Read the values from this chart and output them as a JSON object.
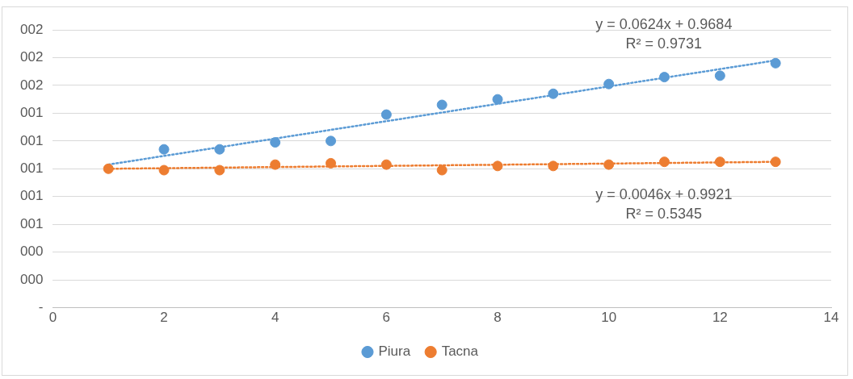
{
  "chart_data": {
    "type": "scatter",
    "xlim": [
      0,
      14
    ],
    "xticks": [
      0,
      2,
      4,
      6,
      8,
      10,
      12,
      14
    ],
    "ylim": [
      0,
      2.0
    ],
    "yticks": [
      {
        "value": 0,
        "label": "-"
      },
      {
        "value": 0.2,
        "label": "000"
      },
      {
        "value": 0.4,
        "label": "000"
      },
      {
        "value": 0.6,
        "label": "001"
      },
      {
        "value": 0.8,
        "label": "001"
      },
      {
        "value": 1.0,
        "label": "001"
      },
      {
        "value": 1.2,
        "label": "001"
      },
      {
        "value": 1.4,
        "label": "001"
      },
      {
        "value": 1.6,
        "label": "002"
      },
      {
        "value": 1.8,
        "label": "002"
      },
      {
        "value": 2.0,
        "label": "002"
      }
    ],
    "grid": "y",
    "legend": "bottom",
    "marker": "circle",
    "series": [
      {
        "name": "Piura",
        "color": "#5b9bd5",
        "x": [
          2,
          3,
          4,
          5,
          6,
          7,
          8,
          9,
          10,
          11,
          12,
          13
        ],
        "values": [
          1.14,
          1.14,
          1.19,
          1.2,
          1.39,
          1.46,
          1.5,
          1.54,
          1.61,
          1.66,
          1.67,
          1.76
        ]
      },
      {
        "name": "Tacna",
        "color": "#ed7d31",
        "x": [
          1,
          2,
          3,
          4,
          5,
          6,
          7,
          8,
          9,
          10,
          11,
          12,
          13
        ],
        "values": [
          1.0,
          0.99,
          0.99,
          1.03,
          1.04,
          1.03,
          0.99,
          1.02,
          1.02,
          1.03,
          1.05,
          1.05,
          1.05
        ]
      },
      {
        "type": "line",
        "line_style": "dotted",
        "marker": "none",
        "color": "#5b9bd5",
        "x": [
          1,
          13
        ],
        "values": [
          1.03,
          1.78
        ]
      },
      {
        "type": "line",
        "line_style": "dotted",
        "marker": "none",
        "color": "#ed7d31",
        "x": [
          1,
          13
        ],
        "values": [
          1.0,
          1.05
        ]
      }
    ],
    "annotations": [
      "y = 0.0624x + 0.9684",
      "R² = 0.9731",
      "y = 0.0046x + 0.9921",
      "R² = 0.5345"
    ]
  }
}
